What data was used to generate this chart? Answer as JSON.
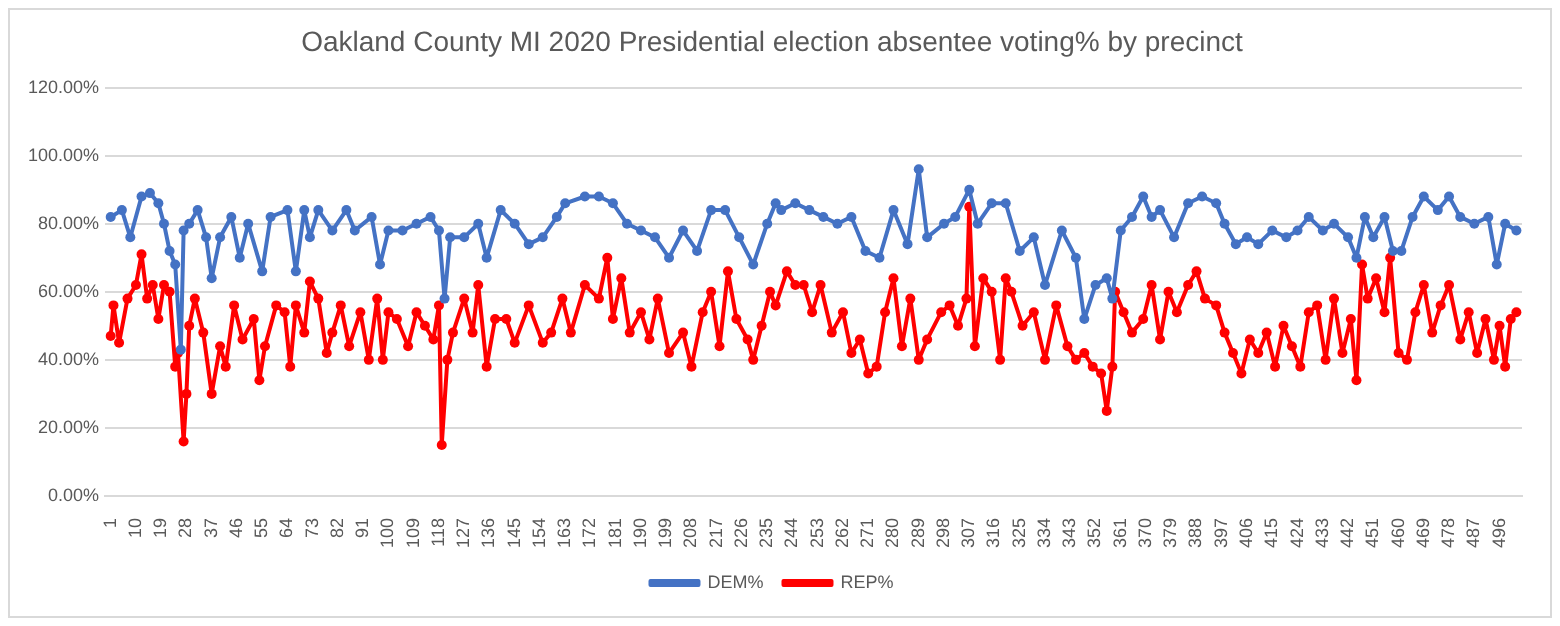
{
  "chart_data": {
    "type": "line",
    "title": "Oakland County MI 2020 Presidential election absentee voting% by precinct",
    "xlim": [
      -1,
      504
    ],
    "xticks": [
      1,
      10,
      19,
      28,
      37,
      46,
      55,
      64,
      73,
      82,
      91,
      100,
      109,
      118,
      127,
      136,
      145,
      154,
      163,
      172,
      181,
      190,
      199,
      208,
      217,
      226,
      235,
      244,
      253,
      262,
      271,
      280,
      289,
      298,
      307,
      316,
      325,
      334,
      343,
      352,
      361,
      370,
      379,
      388,
      397,
      406,
      415,
      424,
      433,
      442,
      451,
      460,
      469,
      478,
      487,
      496
    ],
    "ylim": [
      0,
      120
    ],
    "yticks": [
      {
        "value": 0,
        "label": "0.00%"
      },
      {
        "value": 20,
        "label": "20.00%"
      },
      {
        "value": 40,
        "label": "40.00%"
      },
      {
        "value": 60,
        "label": "60.00%"
      },
      {
        "value": 80,
        "label": "80.00%"
      },
      {
        "value": 100,
        "label": "100.00%"
      },
      {
        "value": 120,
        "label": "120.00%"
      }
    ],
    "grid": "y",
    "legend": "bottom",
    "marker": "circle",
    "line_style": "solid",
    "series": [
      {
        "name": "DEM%",
        "color": "#4472c4",
        "x": [
          1,
          5,
          8,
          12,
          15,
          18,
          20,
          22,
          24,
          26,
          27,
          29,
          32,
          35,
          37,
          40,
          44,
          47,
          50,
          55,
          58,
          64,
          67,
          70,
          72,
          75,
          80,
          85,
          88,
          94,
          97,
          100,
          105,
          110,
          115,
          118,
          120,
          122,
          127,
          132,
          135,
          140,
          145,
          150,
          155,
          160,
          163,
          170,
          175,
          180,
          185,
          190,
          195,
          200,
          205,
          210,
          215,
          220,
          225,
          230,
          235,
          238,
          240,
          245,
          250,
          255,
          260,
          265,
          270,
          275,
          280,
          285,
          289,
          292,
          298,
          302,
          307,
          310,
          315,
          320,
          325,
          330,
          334,
          340,
          345,
          348,
          352,
          356,
          358,
          361,
          365,
          369,
          372,
          375,
          380,
          385,
          390,
          395,
          398,
          402,
          406,
          410,
          415,
          420,
          424,
          428,
          433,
          437,
          442,
          445,
          448,
          451,
          455,
          458,
          461,
          465,
          469,
          474,
          478,
          482,
          487,
          492,
          495,
          498,
          502
        ],
        "values": [
          82,
          84,
          76,
          88,
          89,
          86,
          80,
          72,
          68,
          43,
          78,
          80,
          84,
          76,
          64,
          76,
          82,
          70,
          80,
          66,
          82,
          84,
          66,
          84,
          76,
          84,
          78,
          84,
          78,
          82,
          68,
          78,
          78,
          80,
          82,
          78,
          58,
          76,
          76,
          80,
          70,
          84,
          80,
          74,
          76,
          82,
          86,
          88,
          88,
          86,
          80,
          78,
          76,
          70,
          78,
          72,
          84,
          84,
          76,
          68,
          80,
          86,
          84,
          86,
          84,
          82,
          80,
          82,
          72,
          70,
          84,
          74,
          96,
          76,
          80,
          82,
          90,
          80,
          86,
          86,
          72,
          76,
          62,
          78,
          70,
          52,
          62,
          64,
          58,
          78,
          82,
          88,
          82,
          84,
          76,
          86,
          88,
          86,
          80,
          74,
          76,
          74,
          78,
          76,
          78,
          82,
          78,
          80,
          76,
          70,
          82,
          76,
          82,
          72,
          72,
          82,
          88,
          84,
          88,
          82,
          80,
          82,
          68,
          80,
          78
        ]
      },
      {
        "name": "REP%",
        "color": "#ff0000",
        "x": [
          1,
          2,
          4,
          7,
          10,
          12,
          14,
          16,
          18,
          20,
          22,
          24,
          25,
          27,
          28,
          29,
          31,
          34,
          37,
          40,
          42,
          45,
          48,
          52,
          54,
          56,
          60,
          63,
          65,
          67,
          70,
          72,
          75,
          78,
          80,
          83,
          86,
          90,
          93,
          96,
          98,
          100,
          103,
          107,
          110,
          113,
          116,
          118,
          119,
          121,
          123,
          127,
          130,
          132,
          135,
          138,
          142,
          145,
          150,
          155,
          158,
          162,
          165,
          170,
          175,
          178,
          180,
          183,
          186,
          190,
          193,
          196,
          200,
          205,
          208,
          212,
          215,
          218,
          221,
          224,
          228,
          230,
          233,
          236,
          238,
          242,
          245,
          248,
          251,
          254,
          258,
          262,
          265,
          268,
          271,
          274,
          277,
          280,
          283,
          286,
          289,
          292,
          297,
          300,
          303,
          306,
          307,
          309,
          312,
          315,
          318,
          320,
          322,
          326,
          330,
          334,
          338,
          342,
          345,
          348,
          351,
          354,
          356,
          358,
          359,
          362,
          365,
          369,
          372,
          375,
          378,
          381,
          385,
          388,
          391,
          395,
          398,
          401,
          404,
          407,
          410,
          413,
          416,
          419,
          422,
          425,
          428,
          431,
          434,
          437,
          440,
          443,
          445,
          447,
          449,
          452,
          455,
          457,
          460,
          463,
          466,
          469,
          472,
          475,
          478,
          482,
          485,
          488,
          491,
          494,
          496,
          498,
          500,
          502
        ],
        "values": [
          47,
          56,
          45,
          58,
          62,
          71,
          58,
          62,
          52,
          62,
          60,
          38,
          42,
          16,
          30,
          50,
          58,
          48,
          30,
          44,
          38,
          56,
          46,
          52,
          34,
          44,
          56,
          54,
          38,
          56,
          48,
          63,
          58,
          42,
          48,
          56,
          44,
          54,
          40,
          58,
          40,
          54,
          52,
          44,
          54,
          50,
          46,
          56,
          15,
          40,
          48,
          58,
          48,
          62,
          38,
          52,
          52,
          45,
          56,
          45,
          48,
          58,
          48,
          62,
          58,
          70,
          52,
          64,
          48,
          54,
          46,
          58,
          42,
          48,
          38,
          54,
          60,
          44,
          66,
          52,
          46,
          40,
          50,
          60,
          56,
          66,
          62,
          62,
          54,
          62,
          48,
          54,
          42,
          46,
          36,
          38,
          54,
          64,
          44,
          58,
          40,
          46,
          54,
          56,
          50,
          58,
          85,
          44,
          64,
          60,
          40,
          64,
          60,
          50,
          54,
          40,
          56,
          44,
          40,
          42,
          38,
          36,
          25,
          38,
          60,
          54,
          48,
          52,
          62,
          46,
          60,
          54,
          62,
          66,
          58,
          56,
          48,
          42,
          36,
          46,
          42,
          48,
          38,
          50,
          44,
          38,
          54,
          56,
          40,
          58,
          42,
          52,
          34,
          68,
          58,
          64,
          54,
          70,
          42,
          40,
          54,
          62,
          48,
          56,
          62,
          46,
          54,
          42,
          52,
          40,
          50,
          38,
          52,
          54
        ]
      }
    ]
  }
}
